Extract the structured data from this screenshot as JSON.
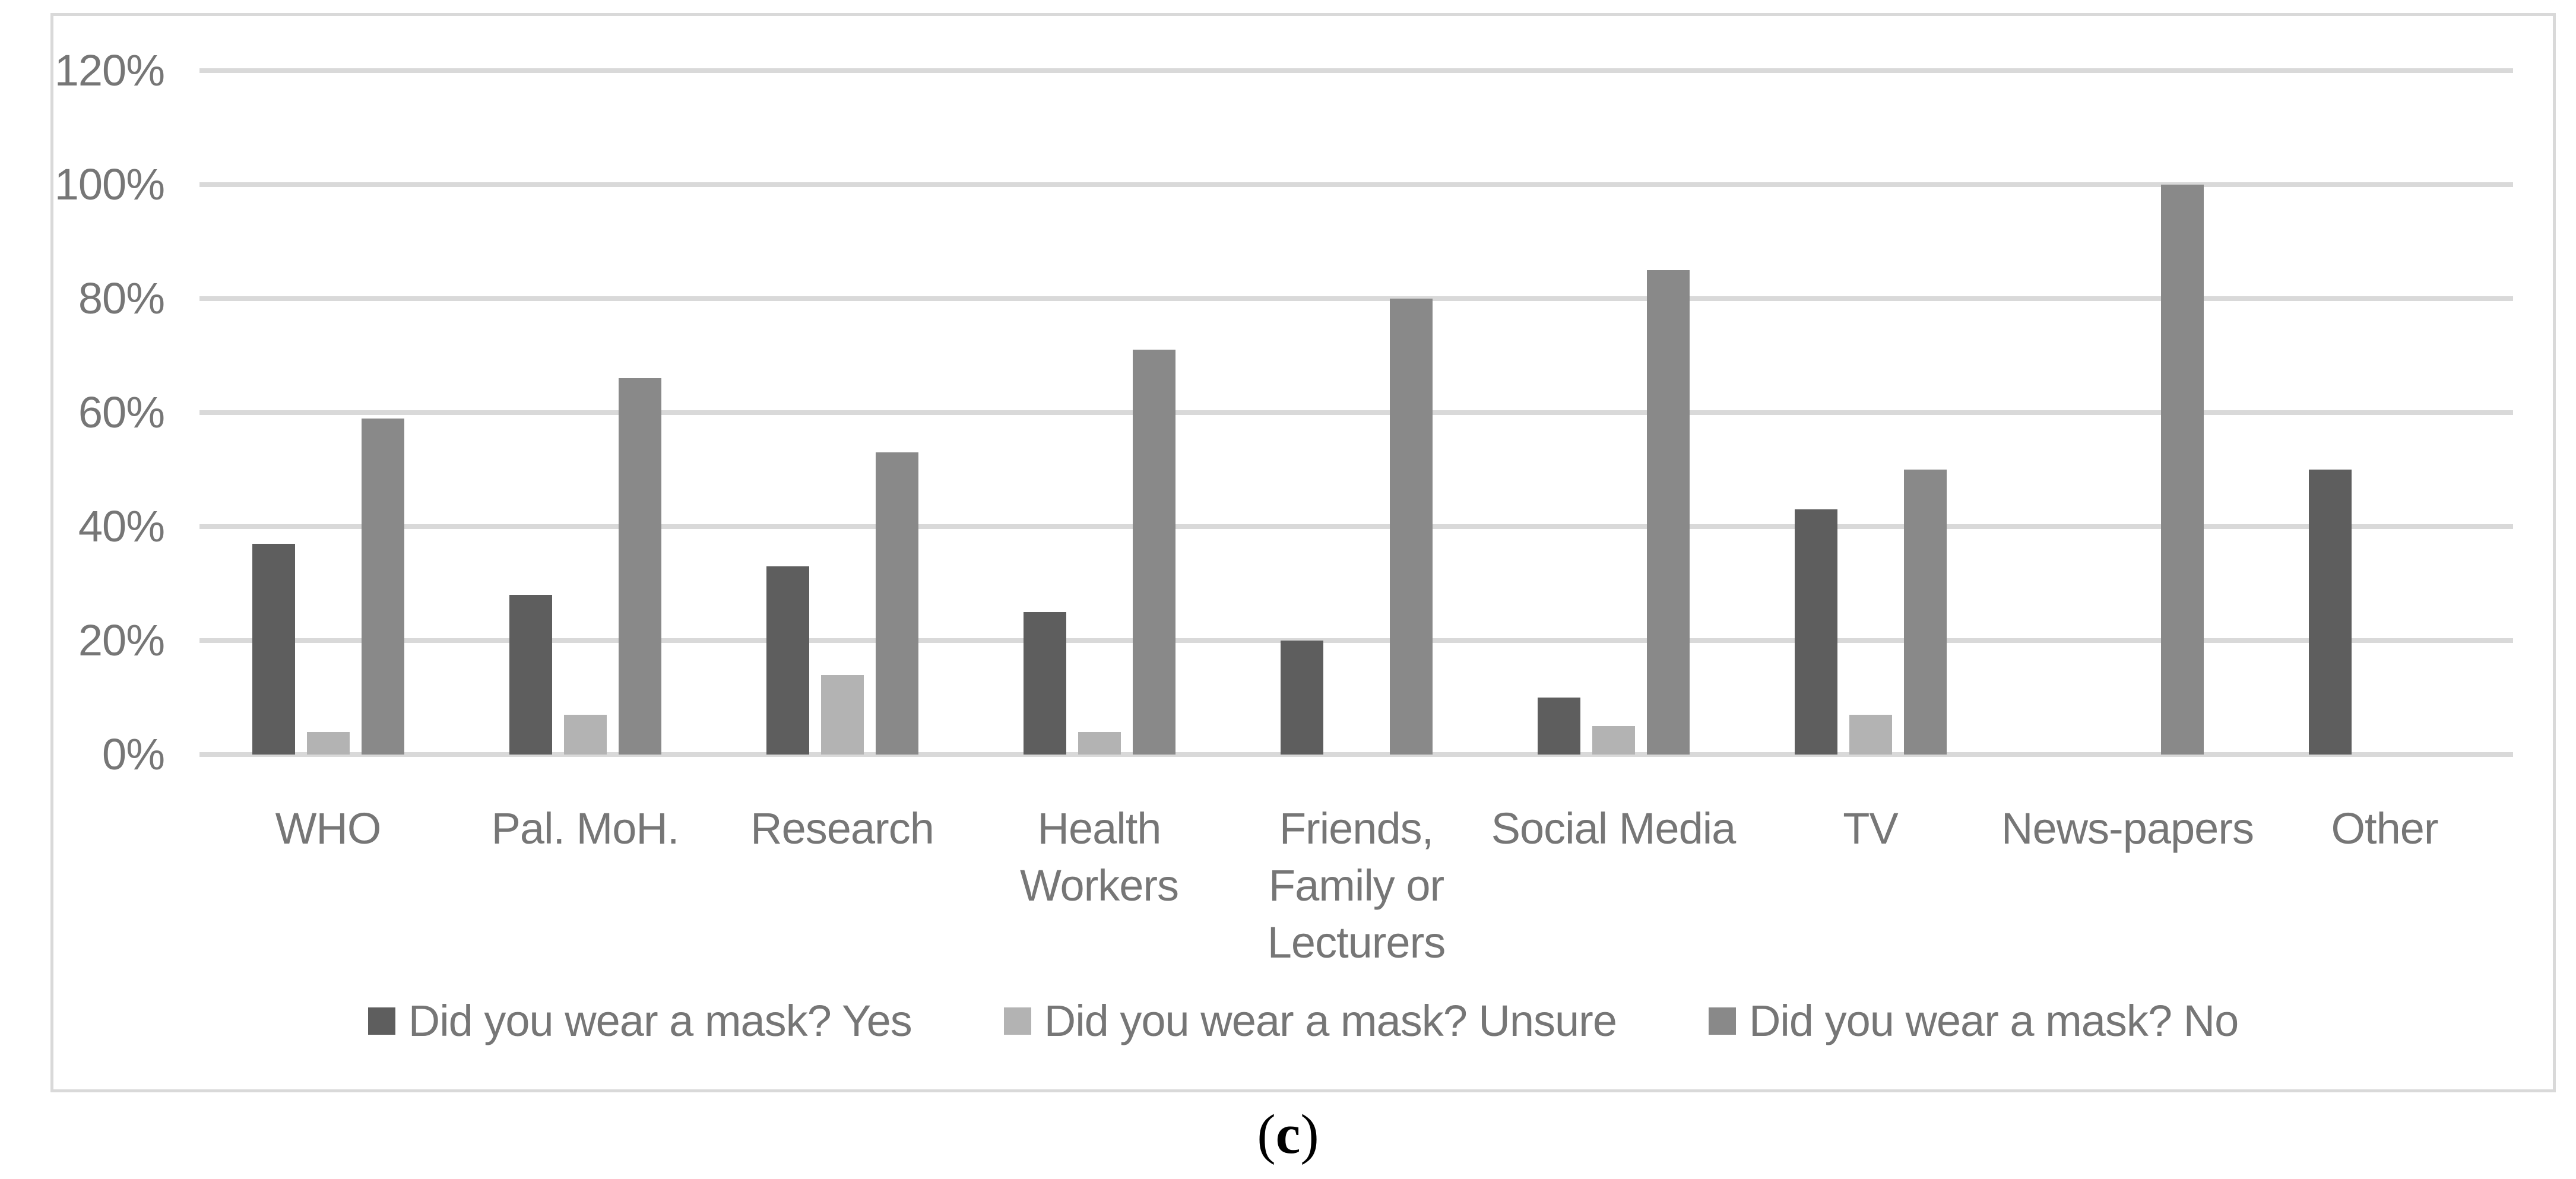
{
  "figure": {
    "caption": {
      "open": "(",
      "letter": "c",
      "close": ")"
    }
  },
  "colors": {
    "background": "#ffffff",
    "chart_border": "#d9d9d9",
    "gridline": "#d9d9d9",
    "axis_text": "#767676",
    "caption_text": "#000000"
  },
  "chart_data": {
    "type": "bar",
    "title": "",
    "xlabel": "",
    "ylabel": "",
    "categories": [
      "WHO",
      "Pal. MoH.",
      "Research",
      "Health\nWorkers",
      "Friends,\nFamily or\nLecturers",
      "Social Media",
      "TV",
      "News-papers",
      "Other"
    ],
    "series": [
      {
        "name": "Did you wear a mask? Yes",
        "color": "#5e5e5e",
        "values": [
          37,
          28,
          33,
          25,
          20,
          10,
          43,
          0,
          50
        ]
      },
      {
        "name": "Did you wear a mask? Unsure",
        "color": "#b3b3b3",
        "values": [
          4,
          7,
          14,
          4,
          0,
          5,
          7,
          0,
          0
        ]
      },
      {
        "name": "Did you wear a mask? No",
        "color": "#898989",
        "values": [
          59,
          66,
          53,
          71,
          80,
          85,
          50,
          100,
          0
        ]
      }
    ],
    "ylim": [
      0,
      120
    ],
    "ytick_step": 20,
    "ytick_labels": [
      "120%",
      "100%",
      "80%",
      "60%",
      "40%",
      "20%",
      "0%"
    ],
    "grid": true,
    "legend_position": "bottom",
    "legend_marker": "square"
  }
}
